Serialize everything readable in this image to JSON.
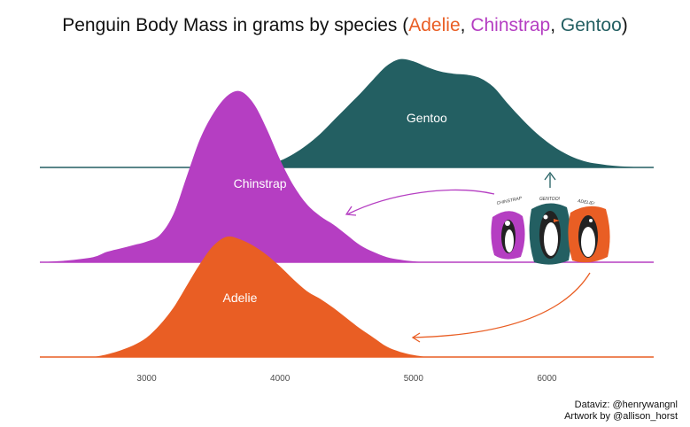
{
  "title": {
    "prefix": "Penguin Body Mass in grams by species (",
    "sep1": ", ",
    "sep2": ", ",
    "suffix": ")"
  },
  "caption": {
    "line1": "Dataviz: @henrywangnl",
    "line2": "Artwork by @allison_horst"
  },
  "artwork": {
    "labels": [
      "CHINSTRAP",
      "GENTOO!",
      "ADELIE!"
    ]
  },
  "chart_data": {
    "type": "area",
    "subtype": "ridgeline-density",
    "title": "Penguin Body Mass in grams by species (Adelie, Chinstrap, Gentoo)",
    "xlabel": "",
    "ylabel": "",
    "xlim": [
      2200,
      6800
    ],
    "x_ticks": [
      3000,
      4000,
      5000,
      6000
    ],
    "grid": false,
    "legend": "none",
    "series": [
      {
        "name": "Gentoo",
        "color": "#235F62",
        "points": [
          [
            3700,
            0
          ],
          [
            3800,
            0.01
          ],
          [
            3900,
            0.03
          ],
          [
            4000,
            0.06
          ],
          [
            4100,
            0.12
          ],
          [
            4200,
            0.2
          ],
          [
            4300,
            0.3
          ],
          [
            4400,
            0.42
          ],
          [
            4500,
            0.54
          ],
          [
            4600,
            0.66
          ],
          [
            4700,
            0.79
          ],
          [
            4800,
            0.91
          ],
          [
            4900,
            0.97
          ],
          [
            5000,
            0.95
          ],
          [
            5100,
            0.9
          ],
          [
            5200,
            0.86
          ],
          [
            5300,
            0.84
          ],
          [
            5400,
            0.83
          ],
          [
            5500,
            0.8
          ],
          [
            5600,
            0.72
          ],
          [
            5700,
            0.58
          ],
          [
            5800,
            0.45
          ],
          [
            5900,
            0.33
          ],
          [
            6000,
            0.23
          ],
          [
            6100,
            0.15
          ],
          [
            6200,
            0.09
          ],
          [
            6300,
            0.05
          ],
          [
            6400,
            0.03
          ],
          [
            6500,
            0.015
          ],
          [
            6600,
            0.007
          ],
          [
            6700,
            0.003
          ],
          [
            6800,
            0
          ]
        ]
      },
      {
        "name": "Chinstrap",
        "color": "#B53EC2",
        "points": [
          [
            2200,
            0
          ],
          [
            2400,
            0.01
          ],
          [
            2600,
            0.03
          ],
          [
            2700,
            0.06
          ],
          [
            2800,
            0.08
          ],
          [
            2900,
            0.1
          ],
          [
            3000,
            0.12
          ],
          [
            3100,
            0.16
          ],
          [
            3200,
            0.28
          ],
          [
            3300,
            0.5
          ],
          [
            3400,
            0.72
          ],
          [
            3500,
            0.87
          ],
          [
            3600,
            0.97
          ],
          [
            3700,
            1.0
          ],
          [
            3800,
            0.93
          ],
          [
            3900,
            0.78
          ],
          [
            4000,
            0.6
          ],
          [
            4100,
            0.45
          ],
          [
            4200,
            0.34
          ],
          [
            4300,
            0.27
          ],
          [
            4400,
            0.22
          ],
          [
            4500,
            0.16
          ],
          [
            4600,
            0.1
          ],
          [
            4700,
            0.06
          ],
          [
            4800,
            0.03
          ],
          [
            4900,
            0.015
          ],
          [
            5000,
            0.005
          ],
          [
            5100,
            0
          ]
        ]
      },
      {
        "name": "Adelie",
        "color": "#E95E24",
        "points": [
          [
            2600,
            0
          ],
          [
            2700,
            0.02
          ],
          [
            2800,
            0.05
          ],
          [
            2900,
            0.09
          ],
          [
            3000,
            0.15
          ],
          [
            3100,
            0.25
          ],
          [
            3200,
            0.38
          ],
          [
            3300,
            0.55
          ],
          [
            3400,
            0.72
          ],
          [
            3500,
            0.86
          ],
          [
            3600,
            0.93
          ],
          [
            3700,
            0.91
          ],
          [
            3800,
            0.86
          ],
          [
            3900,
            0.79
          ],
          [
            4000,
            0.7
          ],
          [
            4100,
            0.6
          ],
          [
            4200,
            0.51
          ],
          [
            4300,
            0.45
          ],
          [
            4400,
            0.38
          ],
          [
            4500,
            0.3
          ],
          [
            4600,
            0.22
          ],
          [
            4700,
            0.15
          ],
          [
            4800,
            0.08
          ],
          [
            4900,
            0.04
          ],
          [
            5000,
            0.015
          ],
          [
            5100,
            0
          ]
        ]
      }
    ]
  }
}
